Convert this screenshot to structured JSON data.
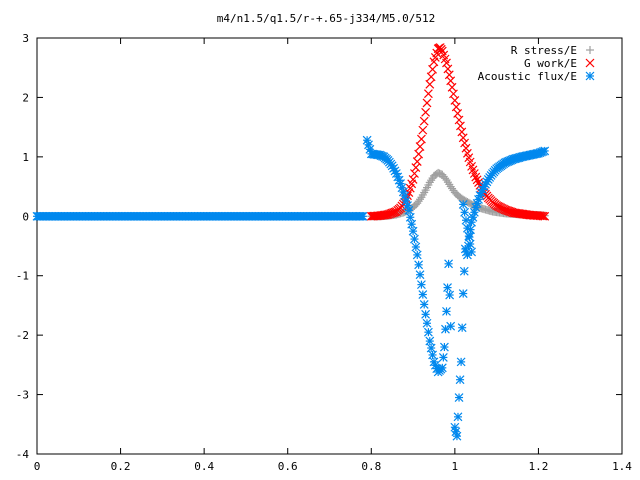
{
  "chart_data": {
    "type": "scatter",
    "title": "m4/n1.5/q1.5/r-+.65-j334/M5.0/512",
    "xlabel": "",
    "ylabel": "",
    "xlim": [
      0,
      1.4
    ],
    "ylim": [
      -4,
      3
    ],
    "xticks": [
      "0",
      "0.2",
      "0.4",
      "0.6",
      "0.8",
      "1",
      "1.2",
      "1.4"
    ],
    "yticks": [
      "3",
      "2",
      "1",
      "0",
      "-1",
      "-2",
      "-3",
      "-4"
    ],
    "grid": false,
    "legend_position": "top-right",
    "series": [
      {
        "name": "R stress/E",
        "marker": "plus",
        "color": "#a0a0a0",
        "points": [
          [
            0.8,
            0.0
          ],
          [
            0.82,
            0.0
          ],
          [
            0.84,
            0.01
          ],
          [
            0.86,
            0.03
          ],
          [
            0.88,
            0.07
          ],
          [
            0.9,
            0.15
          ],
          [
            0.91,
            0.22
          ],
          [
            0.92,
            0.32
          ],
          [
            0.93,
            0.44
          ],
          [
            0.94,
            0.57
          ],
          [
            0.95,
            0.68
          ],
          [
            0.96,
            0.73
          ],
          [
            0.97,
            0.7
          ],
          [
            0.98,
            0.61
          ],
          [
            0.99,
            0.5
          ],
          [
            1.0,
            0.4
          ],
          [
            1.01,
            0.33
          ],
          [
            1.02,
            0.28
          ],
          [
            1.03,
            0.24
          ],
          [
            1.04,
            0.2
          ],
          [
            1.05,
            0.17
          ],
          [
            1.06,
            0.14
          ],
          [
            1.07,
            0.12
          ],
          [
            1.08,
            0.1
          ],
          [
            1.09,
            0.08
          ],
          [
            1.1,
            0.07
          ],
          [
            1.12,
            0.05
          ],
          [
            1.14,
            0.04
          ],
          [
            1.16,
            0.03
          ],
          [
            1.18,
            0.02
          ],
          [
            1.2,
            0.02
          ],
          [
            1.215,
            0.01
          ]
        ]
      },
      {
        "name": "G work/E",
        "marker": "cross",
        "color": "#ff0000",
        "points": [
          [
            0.8,
            0.0
          ],
          [
            0.82,
            0.01
          ],
          [
            0.84,
            0.03
          ],
          [
            0.86,
            0.08
          ],
          [
            0.87,
            0.14
          ],
          [
            0.88,
            0.24
          ],
          [
            0.89,
            0.4
          ],
          [
            0.9,
            0.62
          ],
          [
            0.91,
            0.92
          ],
          [
            0.92,
            1.3
          ],
          [
            0.93,
            1.75
          ],
          [
            0.94,
            2.22
          ],
          [
            0.95,
            2.6
          ],
          [
            0.96,
            2.82
          ],
          [
            0.965,
            2.84
          ],
          [
            0.97,
            2.78
          ],
          [
            0.98,
            2.58
          ],
          [
            0.99,
            2.28
          ],
          [
            1.0,
            1.95
          ],
          [
            1.01,
            1.62
          ],
          [
            1.02,
            1.32
          ],
          [
            1.03,
            1.06
          ],
          [
            1.04,
            0.84
          ],
          [
            1.05,
            0.66
          ],
          [
            1.06,
            0.52
          ],
          [
            1.07,
            0.4
          ],
          [
            1.08,
            0.31
          ],
          [
            1.09,
            0.24
          ],
          [
            1.1,
            0.18
          ],
          [
            1.12,
            0.11
          ],
          [
            1.14,
            0.06
          ],
          [
            1.16,
            0.04
          ],
          [
            1.18,
            0.02
          ],
          [
            1.2,
            0.01
          ],
          [
            1.215,
            0.0
          ]
        ]
      },
      {
        "name": "Acoustic flux/E",
        "marker": "star",
        "color": "#0088ee",
        "points": [
          [
            0.0,
            0.0
          ],
          [
            0.05,
            0.0
          ],
          [
            0.1,
            0.0
          ],
          [
            0.15,
            0.0
          ],
          [
            0.2,
            0.0
          ],
          [
            0.25,
            0.0
          ],
          [
            0.3,
            0.0
          ],
          [
            0.35,
            0.0
          ],
          [
            0.4,
            0.0
          ],
          [
            0.45,
            0.0
          ],
          [
            0.5,
            0.0
          ],
          [
            0.55,
            0.0
          ],
          [
            0.6,
            0.0
          ],
          [
            0.65,
            0.0
          ],
          [
            0.7,
            0.0
          ],
          [
            0.75,
            0.0
          ],
          [
            0.78,
            0.0
          ],
          [
            0.79,
            1.28
          ],
          [
            0.8,
            1.05
          ],
          [
            0.81,
            1.04
          ],
          [
            0.82,
            1.03
          ],
          [
            0.83,
            1.0
          ],
          [
            0.84,
            0.94
          ],
          [
            0.85,
            0.85
          ],
          [
            0.86,
            0.72
          ],
          [
            0.87,
            0.55
          ],
          [
            0.88,
            0.34
          ],
          [
            0.89,
            0.1
          ],
          [
            0.9,
            -0.25
          ],
          [
            0.91,
            -0.65
          ],
          [
            0.92,
            -1.15
          ],
          [
            0.93,
            -1.65
          ],
          [
            0.94,
            -2.1
          ],
          [
            0.95,
            -2.45
          ],
          [
            0.96,
            -2.62
          ],
          [
            0.97,
            -2.55
          ],
          [
            0.975,
            -2.2
          ],
          [
            0.98,
            -1.6
          ],
          [
            0.985,
            -0.8
          ],
          [
            0.99,
            -1.85
          ],
          [
            1.0,
            -3.55
          ],
          [
            1.005,
            -3.7
          ],
          [
            1.01,
            -3.05
          ],
          [
            1.015,
            -2.45
          ],
          [
            1.02,
            -1.3
          ],
          [
            1.025,
            -0.55
          ],
          [
            1.03,
            -0.65
          ],
          [
            1.035,
            -0.35
          ],
          [
            1.04,
            -0.1
          ],
          [
            1.05,
            0.15
          ],
          [
            1.06,
            0.35
          ],
          [
            1.07,
            0.5
          ],
          [
            1.08,
            0.62
          ],
          [
            1.09,
            0.72
          ],
          [
            1.1,
            0.8
          ],
          [
            1.12,
            0.9
          ],
          [
            1.14,
            0.96
          ],
          [
            1.16,
            1.0
          ],
          [
            1.18,
            1.03
          ],
          [
            1.2,
            1.06
          ],
          [
            1.215,
            1.1
          ],
          [
            1.02,
            0.2
          ],
          [
            1.04,
            -0.6
          ]
        ]
      }
    ]
  }
}
